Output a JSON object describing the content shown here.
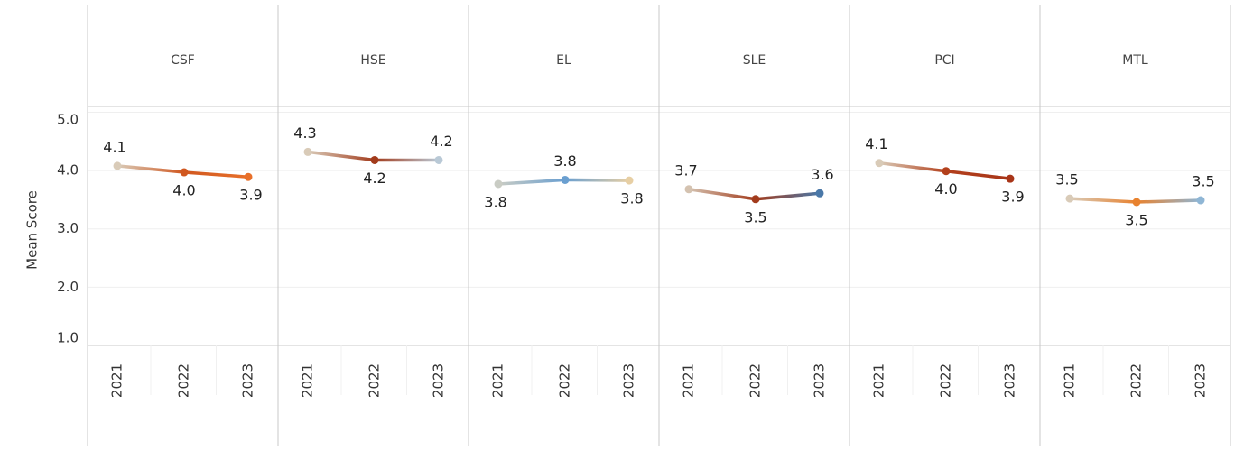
{
  "chart_data": {
    "type": "line",
    "y_label": "Mean Score",
    "categories": [
      "2021",
      "2022",
      "2023"
    ],
    "ylim": [
      1.0,
      5.1
    ],
    "yticks": [
      {
        "value": 5,
        "label": "5.0"
      },
      {
        "value": 4,
        "label": "4.0"
      },
      {
        "value": 3,
        "label": "3.0"
      },
      {
        "value": 2,
        "label": "2.0"
      },
      {
        "value": 1,
        "label": "1.0"
      }
    ],
    "grid": true,
    "series": [
      {
        "name": "CSF",
        "values": [
          4.08,
          3.97,
          3.89
        ],
        "value_labels": [
          "4.1",
          "4.0",
          "3.9"
        ],
        "colors": [
          "#d9cbb8",
          "#d0571f",
          "#e8702a"
        ]
      },
      {
        "name": "HSE",
        "values": [
          4.32,
          4.18,
          4.18
        ],
        "value_labels": [
          "4.3",
          "4.2",
          "4.2"
        ],
        "colors": [
          "#d9cbb8",
          "#a23b1c",
          "#b9c9d6"
        ]
      },
      {
        "name": "EL",
        "values": [
          3.77,
          3.84,
          3.83
        ],
        "value_labels": [
          "3.8",
          "3.8",
          "3.8"
        ],
        "colors": [
          "#c9ccc4",
          "#6a9fd0",
          "#e7cfa4"
        ]
      },
      {
        "name": "SLE",
        "values": [
          3.68,
          3.51,
          3.61
        ],
        "value_labels": [
          "3.7",
          "3.5",
          "3.6"
        ],
        "colors": [
          "#d4c2b0",
          "#a23b1c",
          "#4a78a8"
        ]
      },
      {
        "name": "PCI",
        "values": [
          4.13,
          3.99,
          3.86
        ],
        "value_labels": [
          "4.1",
          "4.0",
          "3.9"
        ],
        "colors": [
          "#d9cbb8",
          "#b3401c",
          "#a83518"
        ]
      },
      {
        "name": "MTL",
        "values": [
          3.52,
          3.46,
          3.49
        ],
        "value_labels": [
          "3.5",
          "3.5",
          "3.5"
        ],
        "colors": [
          "#d9cbb8",
          "#e8822f",
          "#8fb6d5"
        ]
      }
    ]
  }
}
